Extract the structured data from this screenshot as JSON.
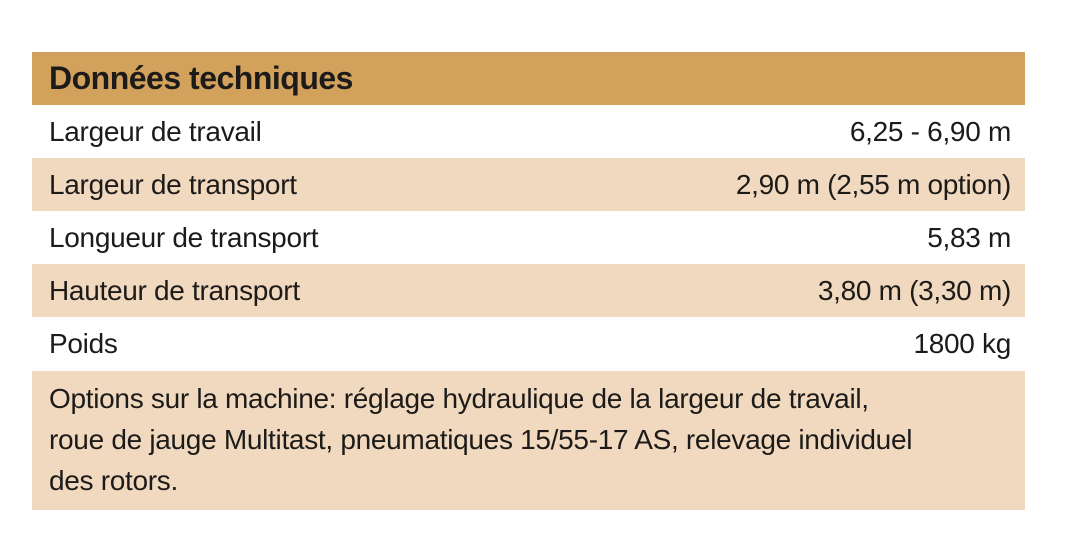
{
  "colors": {
    "header_bg": "#d2a15c",
    "stripe_bg": "#f0d9be",
    "text": "#1d1b19",
    "page_bg": "#ffffff"
  },
  "table": {
    "title": "Données techniques",
    "rows": [
      {
        "label": "Largeur de travail",
        "value": "6,25 - 6,90 m"
      },
      {
        "label": "Largeur de transport",
        "value": "2,90 m (2,55 m option)"
      },
      {
        "label": "Longueur de transport",
        "value": "5,83 m"
      },
      {
        "label": "Hauteur de transport",
        "value": "3,80 m (3,30 m)"
      },
      {
        "label": "Poids",
        "value": "1800 kg"
      }
    ],
    "options_note_lines": [
      "Options sur la machine: réglage hydraulique de la largeur de travail,",
      "roue de jauge Multitast, pneumatiques 15/55-17 AS, relevage individuel",
      "des rotors."
    ]
  }
}
